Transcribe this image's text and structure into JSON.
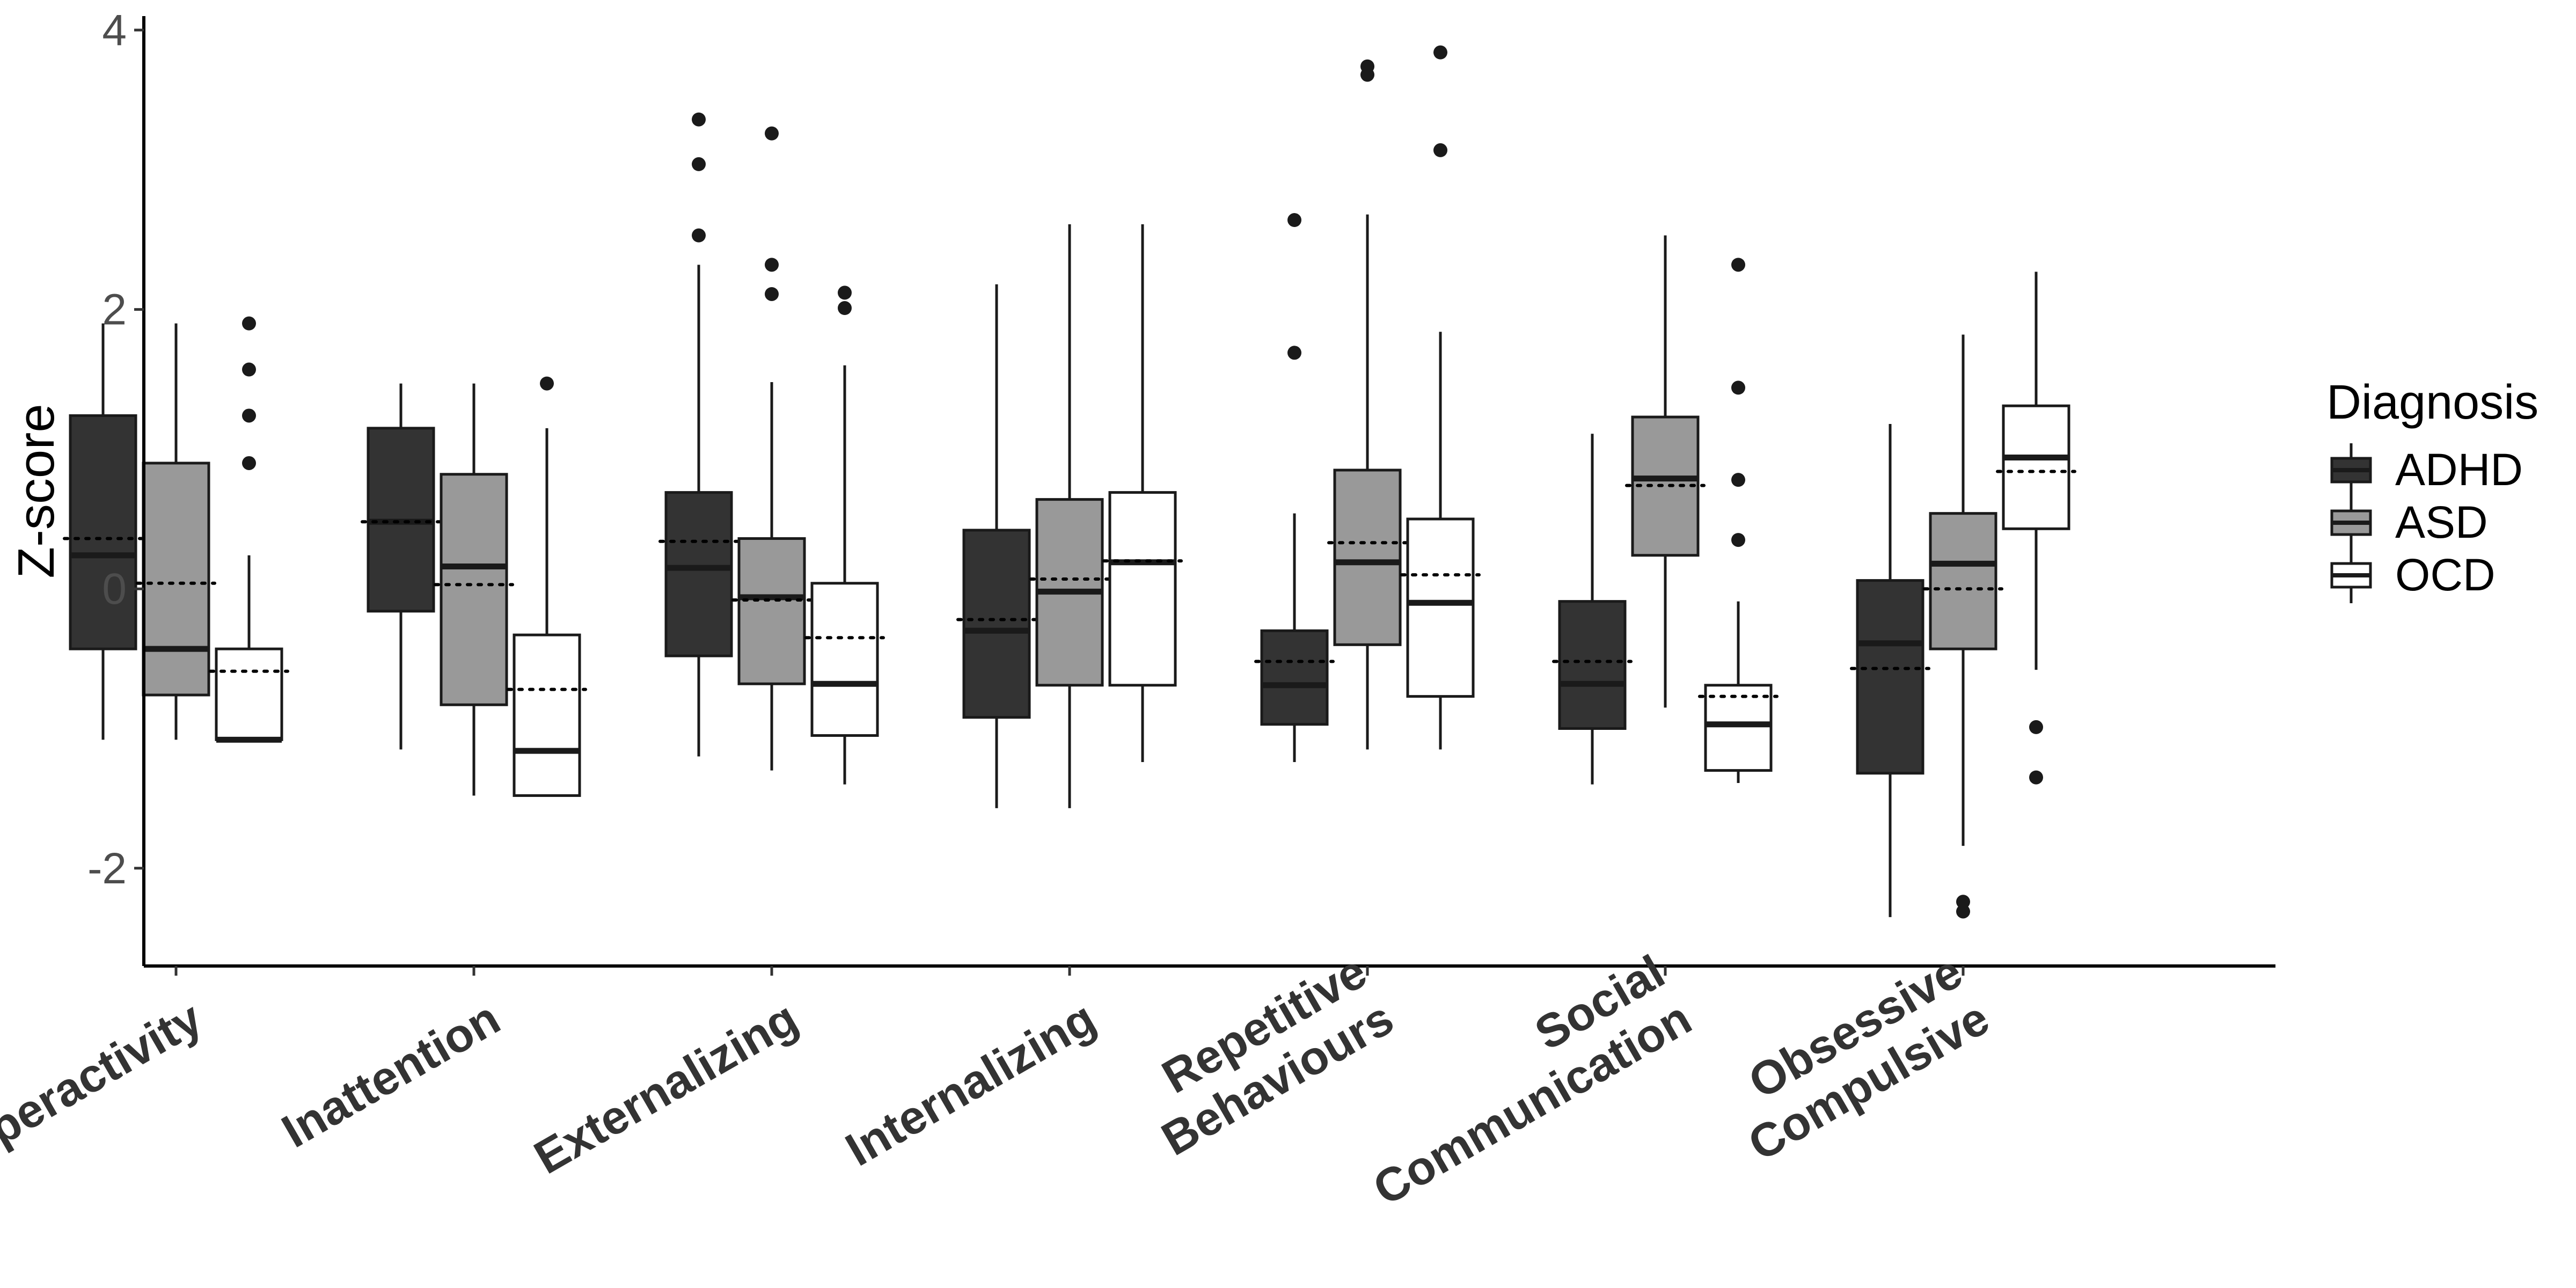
{
  "chart_data": {
    "type": "boxplot",
    "title": "",
    "xlabel": "",
    "ylabel": "Z-score",
    "ylim": [
      -2.7,
      4.1
    ],
    "yticks": [
      -2,
      0,
      2,
      4
    ],
    "grid": false,
    "legend": {
      "title": "Diagnosis",
      "placement": "right"
    },
    "categories": [
      [
        "Hyperactivity"
      ],
      [
        "Inattention"
      ],
      [
        "Externalizing"
      ],
      [
        "Internalizing"
      ],
      [
        "Repetitive",
        "Behaviours"
      ],
      [
        "Social",
        "Communication"
      ],
      [
        "Obsessive",
        "Compulsive"
      ]
    ],
    "series": [
      {
        "name": "ADHD",
        "color": "#333333",
        "boxes": [
          {
            "whisker_low": -1.08,
            "q1": -0.43,
            "median": 0.24,
            "q3": 1.24,
            "whisker_high": 1.9,
            "mean": 0.36,
            "outliers": []
          },
          {
            "whisker_low": -1.15,
            "q1": -0.16,
            "median": 0.48,
            "q3": 1.15,
            "whisker_high": 1.47,
            "mean": 0.48,
            "outliers": []
          },
          {
            "whisker_low": -1.2,
            "q1": -0.48,
            "median": 0.15,
            "q3": 0.69,
            "whisker_high": 2.32,
            "mean": 0.34,
            "outliers": [
              2.53,
              3.04,
              3.36
            ]
          },
          {
            "whisker_low": -1.57,
            "q1": -0.92,
            "median": -0.3,
            "q3": 0.42,
            "whisker_high": 2.18,
            "mean": -0.22,
            "outliers": []
          },
          {
            "whisker_low": -1.24,
            "q1": -0.97,
            "median": -0.69,
            "q3": -0.3,
            "whisker_high": 0.54,
            "mean": -0.52,
            "outliers": [
              1.69,
              2.64
            ]
          },
          {
            "whisker_low": -1.4,
            "q1": -1.0,
            "median": -0.68,
            "q3": -0.09,
            "whisker_high": 1.11,
            "mean": -0.52,
            "outliers": []
          },
          {
            "whisker_low": -2.35,
            "q1": -1.32,
            "median": -0.39,
            "q3": 0.06,
            "whisker_high": 1.18,
            "mean": -0.57,
            "outliers": []
          }
        ]
      },
      {
        "name": "ASD",
        "color": "#999999",
        "boxes": [
          {
            "whisker_low": -1.08,
            "q1": -0.76,
            "median": -0.43,
            "q3": 0.9,
            "whisker_high": 1.9,
            "mean": 0.04,
            "outliers": []
          },
          {
            "whisker_low": -1.48,
            "q1": -0.83,
            "median": 0.16,
            "q3": 0.82,
            "whisker_high": 1.47,
            "mean": 0.03,
            "outliers": []
          },
          {
            "whisker_low": -1.3,
            "q1": -0.68,
            "median": -0.06,
            "q3": 0.36,
            "whisker_high": 1.48,
            "mean": -0.08,
            "outliers": [
              2.11,
              2.32,
              3.26
            ]
          },
          {
            "whisker_low": -1.57,
            "q1": -0.69,
            "median": -0.02,
            "q3": 0.64,
            "whisker_high": 2.61,
            "mean": 0.07,
            "outliers": []
          },
          {
            "whisker_low": -1.15,
            "q1": -0.4,
            "median": 0.19,
            "q3": 0.85,
            "whisker_high": 2.68,
            "mean": 0.33,
            "outliers": [
              3.68,
              3.74
            ]
          },
          {
            "whisker_low": -0.85,
            "q1": 0.24,
            "median": 0.79,
            "q3": 1.23,
            "whisker_high": 2.53,
            "mean": 0.74,
            "outliers": []
          },
          {
            "whisker_low": -1.84,
            "q1": -0.43,
            "median": 0.18,
            "q3": 0.54,
            "whisker_high": 1.82,
            "mean": 0.0,
            "outliers": [
              -2.31,
              -2.24
            ]
          }
        ]
      },
      {
        "name": "OCD",
        "color": "#ffffff",
        "boxes": [
          {
            "whisker_low": -1.08,
            "q1": -1.08,
            "median": -1.08,
            "q3": -0.43,
            "whisker_high": 0.24,
            "mean": -0.59,
            "outliers": [
              0.9,
              1.24,
              1.57,
              1.9
            ]
          },
          {
            "whisker_low": -1.48,
            "q1": -1.48,
            "median": -1.16,
            "q3": -0.33,
            "whisker_high": 1.15,
            "mean": -0.72,
            "outliers": [
              1.47
            ]
          },
          {
            "whisker_low": -1.4,
            "q1": -1.05,
            "median": -0.68,
            "q3": 0.04,
            "whisker_high": 1.6,
            "mean": -0.35,
            "outliers": [
              2.01,
              2.12
            ]
          },
          {
            "whisker_low": -1.24,
            "q1": -0.69,
            "median": 0.19,
            "q3": 0.69,
            "whisker_high": 2.61,
            "mean": 0.2,
            "outliers": []
          },
          {
            "whisker_low": -1.15,
            "q1": -0.77,
            "median": -0.1,
            "q3": 0.5,
            "whisker_high": 1.84,
            "mean": 0.1,
            "outliers": [
              3.14,
              3.84
            ]
          },
          {
            "whisker_low": -1.39,
            "q1": -1.3,
            "median": -0.97,
            "q3": -0.69,
            "whisker_high": -0.09,
            "mean": -0.77,
            "outliers": [
              0.35,
              0.78,
              1.44,
              2.32
            ]
          },
          {
            "whisker_low": -0.58,
            "q1": 0.43,
            "median": 0.94,
            "q3": 1.31,
            "whisker_high": 2.27,
            "mean": 0.84,
            "outliers": [
              -1.35,
              -0.99
            ]
          }
        ]
      }
    ]
  }
}
